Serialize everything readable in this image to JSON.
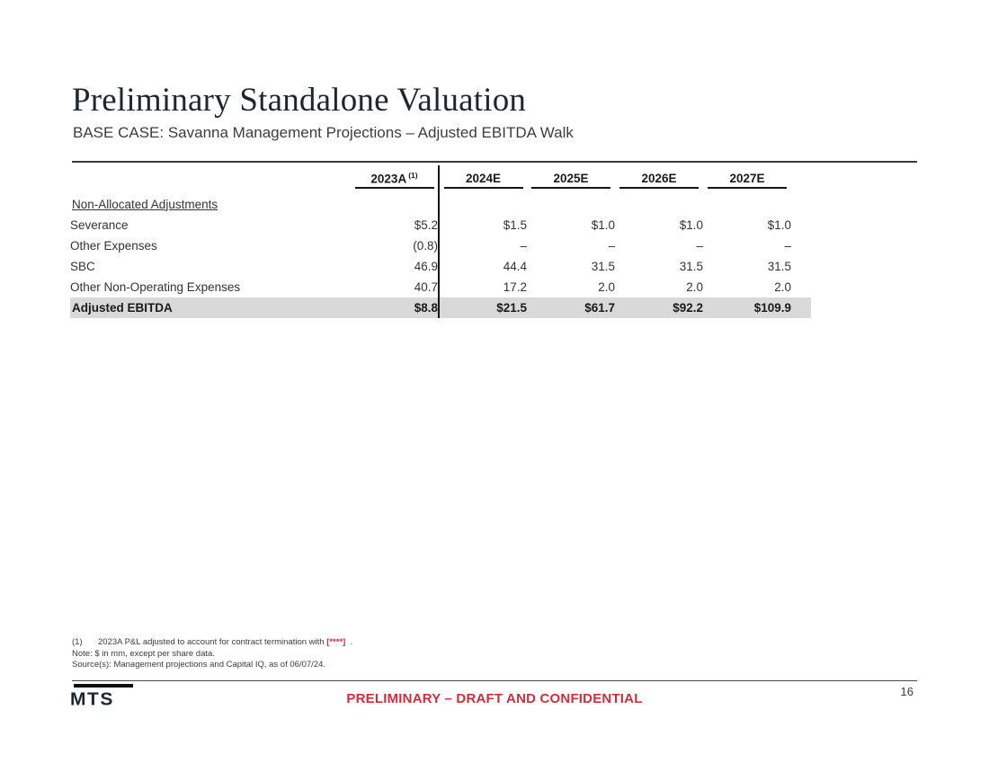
{
  "page": {
    "title": "Preliminary Standalone Valuation",
    "subtitle": "BASE CASE: Savanna Management Projections – Adjusted EBITDA Walk"
  },
  "table": {
    "section_label": "Non-Allocated Adjustments",
    "columns": [
      "2023A",
      "2024E",
      "2025E",
      "2026E",
      "2027E"
    ],
    "footnote_ref": "(1)",
    "rows": [
      {
        "label": "Severance",
        "values": [
          "$5.2",
          "$1.5",
          "$1.0",
          "$1.0",
          "$1.0"
        ]
      },
      {
        "label": "Other Expenses",
        "values": [
          "(0.8)",
          "–",
          "–",
          "–",
          "–"
        ]
      },
      {
        "label": "SBC",
        "values": [
          "46.9",
          "44.4",
          "31.5",
          "31.5",
          "31.5"
        ]
      },
      {
        "label": "Other Non-Operating Expenses",
        "values": [
          "40.7",
          "17.2",
          "2.0",
          "2.0",
          "2.0"
        ]
      }
    ],
    "total": {
      "label": "Adjusted EBITDA",
      "values": [
        "$8.8",
        "$21.5",
        "$61.7",
        "$92.2",
        "$109.9"
      ]
    }
  },
  "footnotes": {
    "fn1_marker": "(1)",
    "fn1_text": "2023A P&L adjusted to account for contract termination with",
    "fn1_redacted": "[****]",
    "fn1_suffix": ".",
    "note": "Note: $ in mm, except per share data.",
    "source": "Source(s): Management projections and Capital IQ, as of 06/07/24."
  },
  "footer": {
    "logo": "MTS",
    "confidential": "PRELIMINARY – DRAFT AND CONFIDENTIAL",
    "page_number": "16"
  },
  "colors": {
    "title": "#1c2733",
    "accent_red": "#d12d3a",
    "total_row_bg": "#d9d9d9"
  }
}
